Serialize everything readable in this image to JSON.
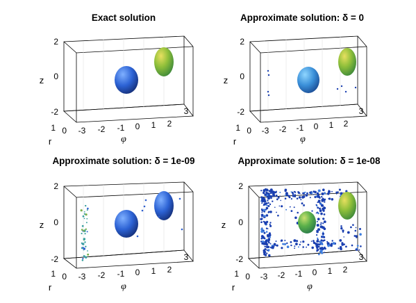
{
  "chart_data": [
    {
      "type": "scatter",
      "chart_kind": "3d-isosurface",
      "title": "Exact solution",
      "xlabel": "φ",
      "ylabel": "r",
      "zlabel": "z",
      "xlim": [
        -3,
        3
      ],
      "ylim": [
        0,
        1
      ],
      "zlim": [
        -2,
        2
      ],
      "xticks": [
        "-3",
        "-2",
        "-1",
        "0",
        "1",
        "2",
        "3"
      ],
      "yticks": [
        "0",
        "1"
      ],
      "zticks": [
        "-2",
        "0",
        "2"
      ],
      "grid": true,
      "series": [
        {
          "shape": "ellipsoid",
          "color": "#2f6fd6",
          "x": -0.4,
          "y": 0.5,
          "z": 0.0
        },
        {
          "shape": "ellipsoid",
          "color": "#8fbf3a",
          "x": 1.8,
          "y": 0.5,
          "z": 0.4
        }
      ],
      "noise": 0
    },
    {
      "type": "scatter",
      "chart_kind": "3d-isosurface",
      "title": "Approximate solution: δ = 0",
      "xlabel": "φ",
      "ylabel": "r",
      "zlabel": "z",
      "xlim": [
        -3,
        3
      ],
      "ylim": [
        0,
        1
      ],
      "zlim": [
        -2,
        2
      ],
      "xticks": [
        "-3",
        "-2",
        "-1",
        "0",
        "1",
        "2",
        "3"
      ],
      "yticks": [
        "0",
        "1"
      ],
      "zticks": [
        "-2",
        "0",
        "2"
      ],
      "grid": true,
      "series": [
        {
          "shape": "ellipsoid",
          "color": "#3b8fd6",
          "x": -0.4,
          "y": 0.5,
          "z": 0.0
        },
        {
          "shape": "ellipsoid",
          "color": "#8fbf3a",
          "x": 1.8,
          "y": 0.5,
          "z": 0.4
        }
      ],
      "noise": 1
    },
    {
      "type": "scatter",
      "chart_kind": "3d-isosurface",
      "title": "Approximate solution: δ = 1e-09",
      "xlabel": "φ",
      "ylabel": "r",
      "zlabel": "z",
      "xlim": [
        -3,
        3
      ],
      "ylim": [
        0,
        1
      ],
      "zlim": [
        -2,
        2
      ],
      "xticks": [
        "-3",
        "-2",
        "-1",
        "0",
        "1",
        "2",
        "3"
      ],
      "yticks": [
        "0",
        "1"
      ],
      "zticks": [
        "-2",
        "0",
        "2"
      ],
      "grid": true,
      "series": [
        {
          "shape": "ellipsoid",
          "color": "#2f5fd0",
          "x": -0.4,
          "y": 0.5,
          "z": 0.0
        },
        {
          "shape": "ellipsoid",
          "color": "#2f6fd6",
          "x": 1.8,
          "y": 0.5,
          "z": 0.4
        }
      ],
      "noise": 2
    },
    {
      "type": "scatter",
      "chart_kind": "3d-isosurface",
      "title": "Approximate solution: δ = 1e-08",
      "xlabel": "φ",
      "ylabel": "r",
      "zlabel": "z",
      "xlim": [
        -3,
        3
      ],
      "ylim": [
        0,
        1
      ],
      "zlim": [
        -2,
        2
      ],
      "xticks": [
        "-3",
        "-2",
        "-1",
        "0",
        "1",
        "2",
        "3"
      ],
      "yticks": [
        "0",
        "1"
      ],
      "zticks": [
        "-2",
        "0",
        "2"
      ],
      "grid": true,
      "series": [
        {
          "shape": "ellipsoid",
          "color": "#5ab04a",
          "x": -0.4,
          "y": 0.5,
          "z": 0.0
        },
        {
          "shape": "ellipsoid",
          "color": "#8fbf3a",
          "x": 1.8,
          "y": 0.5,
          "z": 0.4
        }
      ],
      "noise": 3
    }
  ]
}
